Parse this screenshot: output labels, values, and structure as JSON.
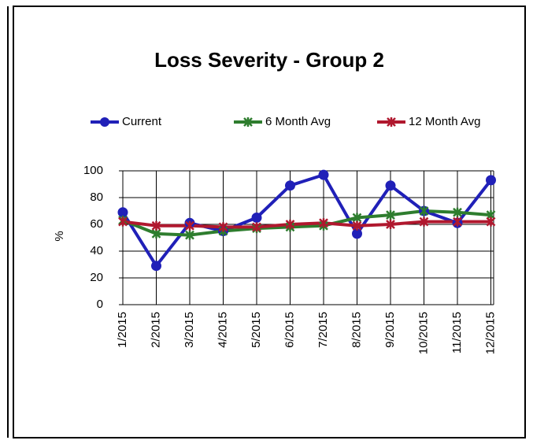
{
  "chart_data": {
    "type": "line",
    "title": "Loss Severity - Group 2",
    "y_label": "%",
    "categories": [
      "1/2015",
      "2/2015",
      "3/2015",
      "4/2015",
      "5/2015",
      "6/2015",
      "7/2015",
      "8/2015",
      "9/2015",
      "10/2015",
      "11/2015",
      "12/2015"
    ],
    "series": [
      {
        "name": "Current",
        "color": "#2020b8",
        "marker": "circle",
        "values": [
          69,
          29,
          61,
          55,
          65,
          89,
          97,
          53,
          89,
          70,
          61,
          93
        ]
      },
      {
        "name": "6 Month Avg",
        "color": "#2e7d2e",
        "marker": "star",
        "values": [
          63,
          53,
          52,
          55,
          57,
          58,
          59,
          65,
          67,
          70,
          69,
          67
        ]
      },
      {
        "name": "12 Month Avg",
        "color": "#b0182e",
        "marker": "star",
        "values": [
          62,
          59,
          59,
          58,
          58,
          60,
          61,
          59,
          60,
          62,
          62,
          62
        ]
      }
    ],
    "ylim": [
      0,
      100
    ],
    "yticks": [
      0,
      20,
      40,
      60,
      80,
      100
    ],
    "grid": true,
    "legend": "top"
  }
}
